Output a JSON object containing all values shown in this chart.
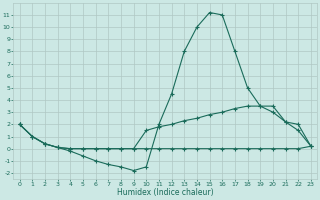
{
  "xlabel": "Humidex (Indice chaleur)",
  "bg_color": "#cce8e4",
  "grid_color": "#b0c8c4",
  "line_color": "#1a6b5a",
  "xlim": [
    -0.5,
    23.5
  ],
  "ylim": [
    -2.5,
    12
  ],
  "xticks": [
    0,
    1,
    2,
    3,
    4,
    5,
    6,
    7,
    8,
    9,
    10,
    11,
    12,
    13,
    14,
    15,
    16,
    17,
    18,
    19,
    20,
    21,
    22,
    23
  ],
  "yticks": [
    -2,
    -1,
    0,
    1,
    2,
    3,
    4,
    5,
    6,
    7,
    8,
    9,
    10,
    11
  ],
  "line1_x": [
    0,
    1,
    2,
    3,
    4,
    5,
    6,
    7,
    8,
    9,
    10,
    11,
    12,
    13,
    14,
    15,
    16,
    17,
    18,
    19,
    20,
    21,
    22,
    23
  ],
  "line1_y": [
    2,
    1,
    0.4,
    0.1,
    -0.2,
    -0.6,
    -1.0,
    -1.3,
    -1.5,
    -1.8,
    -1.5,
    2.0,
    4.5,
    8.0,
    10.0,
    11.2,
    11.0,
    8.0,
    5.0,
    3.5,
    3.0,
    2.2,
    1.5,
    0.2
  ],
  "line2_x": [
    0,
    1,
    2,
    3,
    4,
    5,
    6,
    7,
    8,
    9,
    10,
    11,
    12,
    13,
    14,
    15,
    16,
    17,
    18,
    19,
    20,
    21,
    22,
    23
  ],
  "line2_y": [
    2,
    1,
    0.4,
    0.1,
    0.0,
    0.0,
    0.0,
    0.0,
    0.0,
    0.0,
    1.5,
    1.8,
    2.0,
    2.3,
    2.5,
    2.8,
    3.0,
    3.3,
    3.5,
    3.5,
    3.5,
    2.2,
    2.0,
    0.2
  ],
  "line3_x": [
    0,
    1,
    2,
    3,
    4,
    5,
    6,
    7,
    8,
    9,
    10,
    11,
    12,
    13,
    14,
    15,
    16,
    17,
    18,
    19,
    20,
    21,
    22,
    23
  ],
  "line3_y": [
    2,
    1,
    0.4,
    0.1,
    0.0,
    0.0,
    0.0,
    0.0,
    0.0,
    0.0,
    0.0,
    0.0,
    0.0,
    0.0,
    0.0,
    0.0,
    0.0,
    0.0,
    0.0,
    0.0,
    0.0,
    0.0,
    0.0,
    0.2
  ]
}
